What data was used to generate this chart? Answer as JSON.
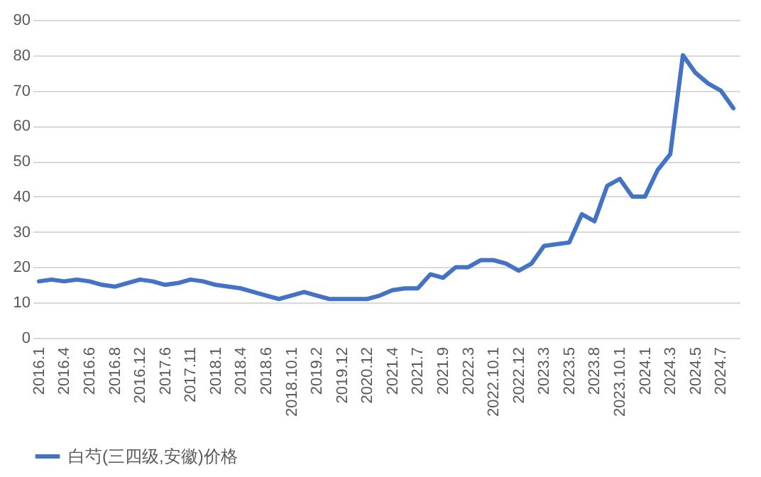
{
  "chart_data": {
    "type": "line",
    "categories": [
      "2016.1",
      null,
      "2016.4",
      null,
      "2016.6",
      null,
      "2016.8",
      null,
      "2016.12",
      null,
      "2017.6",
      null,
      "2017.11",
      null,
      "2018.1",
      null,
      "2018.4",
      null,
      "2018.6",
      null,
      "2018.10.1",
      null,
      "2019.2",
      null,
      "2019.12",
      null,
      "2020.12",
      null,
      "2021.4",
      null,
      "2021.7",
      null,
      "2021.9",
      null,
      "2022.3",
      null,
      "2022.10.1",
      null,
      "2022.12",
      null,
      "2023.3",
      null,
      "2023.5",
      null,
      "2023.8",
      null,
      "2023.10.1",
      null,
      "2024.1",
      null,
      "2024.3",
      null,
      "2024.5",
      null,
      "2024.7",
      null
    ],
    "series": [
      {
        "name": "白芍(三四级,安徽)价格",
        "color": "#4472c4",
        "values": [
          16,
          16.5,
          16,
          16.5,
          16,
          15,
          14.5,
          15.5,
          16.5,
          16,
          15,
          15.5,
          16.5,
          16,
          15,
          14.5,
          14,
          13,
          12,
          11,
          12,
          13,
          12,
          11,
          11,
          11,
          11,
          12,
          13.5,
          14,
          14,
          18,
          17,
          20,
          20,
          22,
          22,
          21,
          19,
          21,
          26,
          26.5,
          27,
          35,
          33,
          43,
          45,
          40,
          40,
          47.5,
          52,
          80,
          75,
          72,
          70,
          65
        ]
      }
    ],
    "ylim": [
      0,
      90
    ],
    "yticks": [
      0,
      10,
      20,
      30,
      40,
      50,
      60,
      70,
      80,
      90
    ],
    "grid": "y",
    "legend": "bottom",
    "marker": "none",
    "line_style": "solid"
  }
}
